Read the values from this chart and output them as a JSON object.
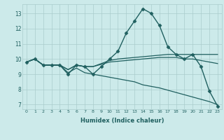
{
  "xlabel": "Humidex (Indice chaleur)",
  "ylabel": "",
  "bg_color": "#cceaea",
  "grid_color": "#aacccc",
  "line_color": "#206060",
  "xlim": [
    -0.5,
    23.5
  ],
  "ylim": [
    6.7,
    13.6
  ],
  "xticks": [
    0,
    1,
    2,
    3,
    4,
    5,
    6,
    7,
    8,
    9,
    10,
    11,
    12,
    13,
    14,
    15,
    16,
    17,
    18,
    19,
    20,
    21,
    22,
    23
  ],
  "yticks": [
    7,
    8,
    9,
    10,
    11,
    12,
    13
  ],
  "series": [
    {
      "x": [
        0,
        1,
        2,
        3,
        4,
        5,
        6,
        7,
        8,
        9,
        10,
        11,
        12,
        13,
        14,
        15,
        16,
        17,
        18,
        19,
        20,
        21,
        22,
        23
      ],
      "y": [
        9.8,
        10.0,
        9.6,
        9.6,
        9.6,
        9.0,
        9.6,
        9.5,
        9.0,
        9.5,
        10.0,
        10.5,
        11.7,
        12.5,
        13.3,
        13.0,
        12.2,
        10.8,
        10.3,
        10.0,
        10.3,
        9.5,
        7.9,
        6.9
      ],
      "marker": "D",
      "markersize": 2.5,
      "linewidth": 1.0
    },
    {
      "x": [
        0,
        1,
        2,
        3,
        4,
        5,
        6,
        7,
        8,
        9,
        10,
        11,
        12,
        13,
        14,
        15,
        16,
        17,
        18,
        19,
        20,
        21,
        22,
        23
      ],
      "y": [
        9.8,
        10.0,
        9.6,
        9.6,
        9.6,
        9.3,
        9.6,
        9.5,
        9.5,
        9.7,
        9.9,
        10.0,
        10.05,
        10.1,
        10.15,
        10.2,
        10.25,
        10.3,
        10.3,
        10.3,
        10.3,
        10.3,
        10.3,
        10.3
      ],
      "marker": null,
      "markersize": 0,
      "linewidth": 0.9
    },
    {
      "x": [
        0,
        1,
        2,
        3,
        4,
        5,
        6,
        7,
        8,
        9,
        10,
        11,
        12,
        13,
        14,
        15,
        16,
        17,
        18,
        19,
        20,
        21,
        22,
        23
      ],
      "y": [
        9.8,
        10.0,
        9.6,
        9.6,
        9.6,
        9.3,
        9.6,
        9.5,
        9.5,
        9.65,
        9.8,
        9.85,
        9.9,
        9.95,
        10.0,
        10.05,
        10.1,
        10.1,
        10.1,
        10.0,
        10.0,
        9.9,
        9.8,
        9.7
      ],
      "marker": null,
      "markersize": 0,
      "linewidth": 0.9
    },
    {
      "x": [
        0,
        1,
        2,
        3,
        4,
        5,
        6,
        7,
        8,
        9,
        10,
        11,
        12,
        13,
        14,
        15,
        16,
        17,
        18,
        19,
        20,
        21,
        22,
        23
      ],
      "y": [
        9.8,
        10.0,
        9.6,
        9.6,
        9.6,
        9.1,
        9.4,
        9.1,
        9.0,
        8.9,
        8.8,
        8.7,
        8.6,
        8.5,
        8.3,
        8.2,
        8.1,
        7.95,
        7.8,
        7.65,
        7.5,
        7.35,
        7.2,
        7.0
      ],
      "marker": null,
      "markersize": 0,
      "linewidth": 0.9
    }
  ]
}
